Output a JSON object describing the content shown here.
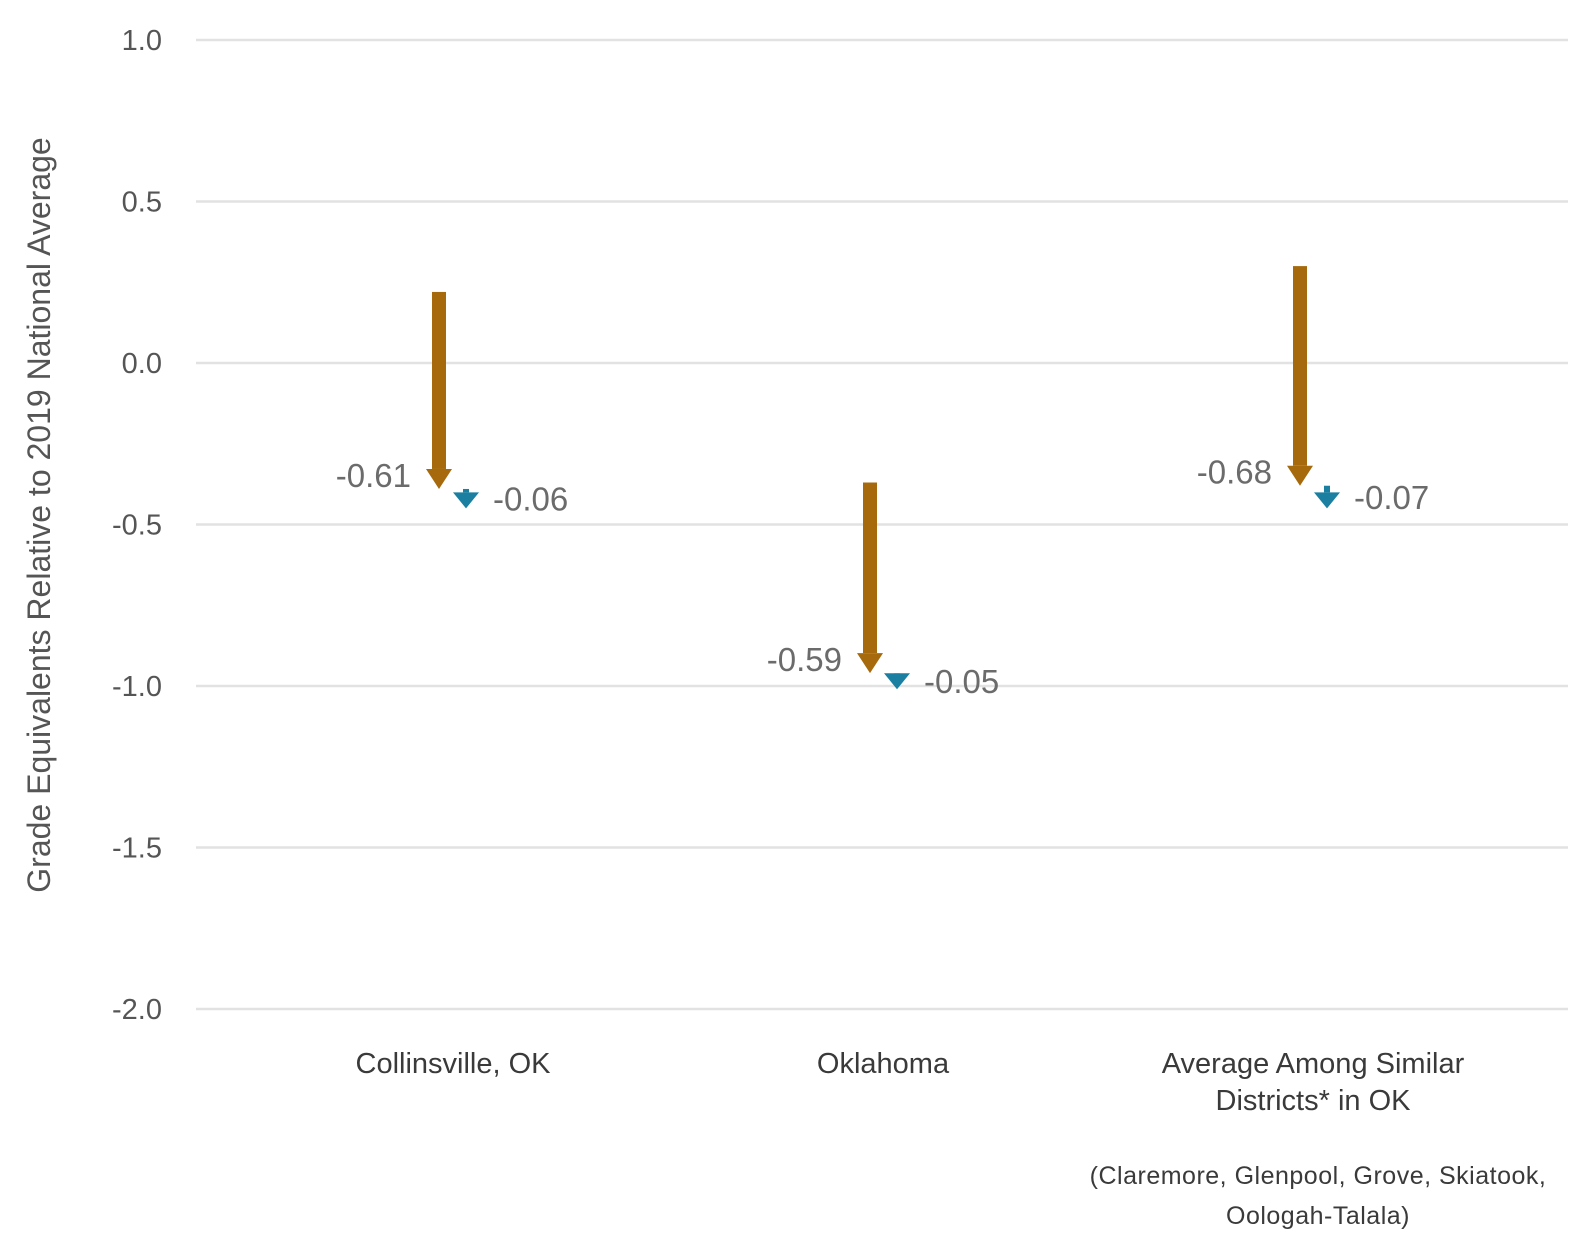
{
  "chart_data": {
    "type": "arrow-change",
    "ylabel": "Grade Equivalents Relative to 2019 National Average",
    "ylim": [
      -2.0,
      1.0
    ],
    "yticks": [
      "1.0",
      "0.5",
      "0.0",
      "-0.5",
      "-1.0",
      "-1.5",
      "-2.0"
    ],
    "ytick_values": [
      1.0,
      0.5,
      0.0,
      -0.5,
      -1.0,
      -1.5,
      -2.0
    ],
    "grid": true,
    "categories": [
      {
        "lines": [
          "Collinsville, OK"
        ],
        "note": []
      },
      {
        "lines": [
          "Oklahoma"
        ],
        "note": []
      },
      {
        "lines": [
          "Average Among Similar",
          "Districts* in OK"
        ],
        "note": [
          "(Claremore, Glenpool, Grove, Skiatook,",
          "Oologah-Talala)"
        ]
      }
    ],
    "series": [
      {
        "color": "#a66a0c",
        "start": [
          0.22,
          -0.37,
          0.3
        ],
        "end": [
          -0.39,
          -0.96,
          -0.38
        ],
        "change_labels": [
          "-0.61",
          "-0.59",
          "-0.68"
        ]
      },
      {
        "color": "#1a7fa0",
        "start": [
          -0.39,
          -0.96,
          -0.38
        ],
        "end": [
          -0.45,
          -1.01,
          -0.45
        ],
        "change_labels": [
          "-0.06",
          "-0.05",
          "-0.07"
        ]
      }
    ]
  }
}
